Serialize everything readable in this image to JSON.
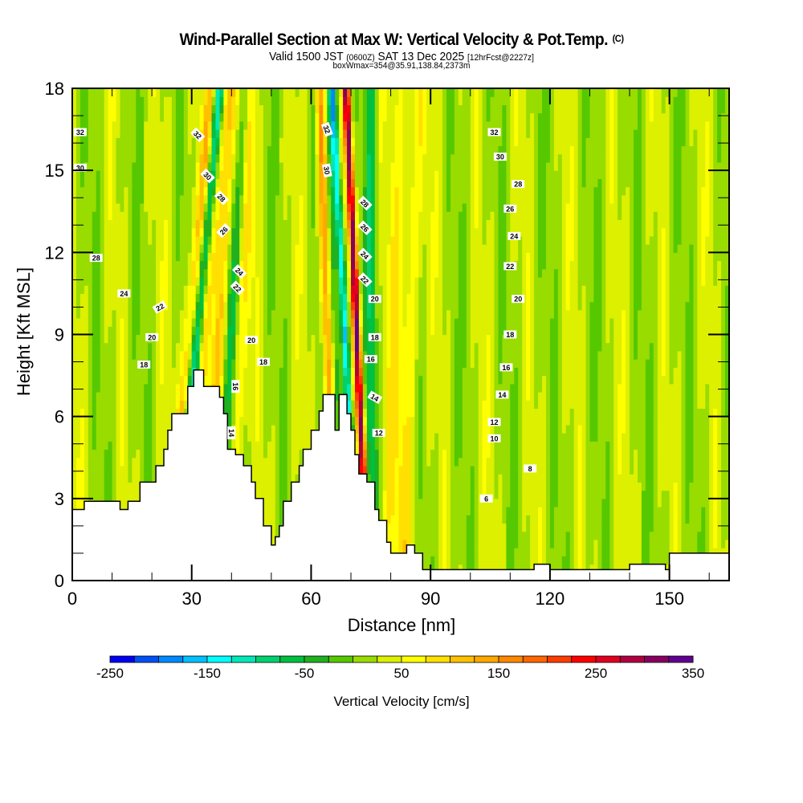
{
  "header": {
    "title": "Wind-Parallel Section at Max W: Vertical Velocity & Pot.Temp.",
    "copyright": "(C)",
    "valid_prefix": "Valid 1500 JST",
    "valid_utc": "(0600Z)",
    "valid_date": "SAT 13 Dec 2025",
    "forecast": "[12hrFcst@2227z]",
    "boxwmax": "boxWmax=354@35.91,138.84,2373m"
  },
  "chart_data": {
    "type": "heatmap",
    "title": "Wind-Parallel Section at Max W: Vertical Velocity & Pot.Temp.",
    "xlabel": "Distance [nm]",
    "ylabel": "Height [Kft MSL]",
    "xlim": [
      0,
      165
    ],
    "ylim": [
      0,
      18
    ],
    "xticks": [
      "0",
      "30",
      "60",
      "90",
      "120",
      "150"
    ],
    "xtick_values": [
      0,
      30,
      60,
      90,
      120,
      150
    ],
    "yticks": [
      "0",
      "3",
      "6",
      "9",
      "12",
      "15",
      "18"
    ],
    "ytick_values": [
      0,
      3,
      6,
      9,
      12,
      15,
      18
    ],
    "colorbar": {
      "label": "Vertical Velocity [cm/s]",
      "min": -250,
      "max": 350,
      "step": 25,
      "tick_labels": [
        "-250",
        "-150",
        "-50",
        "50",
        "150",
        "250",
        "350"
      ],
      "tick_values": [
        -250,
        -150,
        -50,
        50,
        150,
        250,
        350
      ],
      "colors": [
        "#0000f0",
        "#0050f5",
        "#0088ff",
        "#00c0ff",
        "#00ffff",
        "#00e8b8",
        "#00d070",
        "#00c040",
        "#20b020",
        "#55c800",
        "#98dc00",
        "#dcf000",
        "#ffff00",
        "#ffe000",
        "#ffc000",
        "#ffa800",
        "#ff8800",
        "#ff6600",
        "#ff3c00",
        "#ff0000",
        "#e00020",
        "#b00040",
        "#880060",
        "#600090"
      ]
    },
    "terrain_kft": [
      [
        0,
        2.6
      ],
      [
        3,
        2.6
      ],
      [
        3,
        2.9
      ],
      [
        12,
        2.9
      ],
      [
        12,
        2.6
      ],
      [
        14,
        2.6
      ],
      [
        14,
        2.9
      ],
      [
        17,
        2.9
      ],
      [
        17,
        3.6
      ],
      [
        21,
        3.6
      ],
      [
        21,
        4.2
      ],
      [
        23,
        4.2
      ],
      [
        23,
        4.8
      ],
      [
        24,
        4.8
      ],
      [
        24,
        5.5
      ],
      [
        25,
        5.5
      ],
      [
        25,
        6.1
      ],
      [
        29,
        6.1
      ],
      [
        29,
        7.1
      ],
      [
        30.5,
        7.1
      ],
      [
        30.5,
        7.7
      ],
      [
        33,
        7.7
      ],
      [
        33,
        7.1
      ],
      [
        37,
        7.1
      ],
      [
        37,
        6.7
      ],
      [
        38,
        6.7
      ],
      [
        38,
        6.1
      ],
      [
        39,
        6.1
      ],
      [
        39,
        4.8
      ],
      [
        41,
        4.8
      ],
      [
        41,
        4.6
      ],
      [
        43,
        4.6
      ],
      [
        43,
        4.2
      ],
      [
        45,
        4.2
      ],
      [
        45,
        3.6
      ],
      [
        46,
        3.6
      ],
      [
        46,
        3.0
      ],
      [
        48,
        3.0
      ],
      [
        48,
        2.0
      ],
      [
        50,
        2.0
      ],
      [
        50,
        1.3
      ],
      [
        51,
        1.3
      ],
      [
        51,
        1.6
      ],
      [
        52,
        1.6
      ],
      [
        52,
        2.0
      ],
      [
        53,
        2.0
      ],
      [
        53,
        2.9
      ],
      [
        55,
        2.9
      ],
      [
        55,
        3.6
      ],
      [
        57,
        3.6
      ],
      [
        57,
        4.2
      ],
      [
        58,
        4.2
      ],
      [
        58,
        4.8
      ],
      [
        60,
        4.8
      ],
      [
        60,
        5.5
      ],
      [
        62,
        5.5
      ],
      [
        62,
        6.2
      ],
      [
        63,
        6.2
      ],
      [
        63,
        6.8
      ],
      [
        66,
        6.8
      ],
      [
        66,
        5.5
      ],
      [
        67,
        5.5
      ],
      [
        67,
        6.8
      ],
      [
        69,
        6.8
      ],
      [
        69,
        6.1
      ],
      [
        70,
        6.1
      ],
      [
        70,
        5.5
      ],
      [
        71,
        5.5
      ],
      [
        71,
        4.6
      ],
      [
        72,
        4.6
      ],
      [
        72,
        3.9
      ],
      [
        74,
        3.9
      ],
      [
        74,
        3.6
      ],
      [
        76,
        3.6
      ],
      [
        76,
        2.6
      ],
      [
        77,
        2.6
      ],
      [
        77,
        2.2
      ],
      [
        79,
        2.2
      ],
      [
        79,
        1.4
      ],
      [
        80,
        1.4
      ],
      [
        80,
        1.0
      ],
      [
        84,
        1.0
      ],
      [
        84,
        1.3
      ],
      [
        86,
        1.3
      ],
      [
        86,
        1.0
      ],
      [
        88,
        1.0
      ],
      [
        88,
        0.4
      ],
      [
        116,
        0.4
      ],
      [
        116,
        0.6
      ],
      [
        120,
        0.6
      ],
      [
        120,
        0.4
      ],
      [
        140,
        0.4
      ],
      [
        140,
        0.6
      ],
      [
        149,
        0.6
      ],
      [
        149,
        0.4
      ],
      [
        150,
        0.4
      ],
      [
        150,
        1.0
      ],
      [
        165,
        1.0
      ]
    ],
    "theta_contour_labels": [
      "32",
      "30",
      "28",
      "26",
      "24",
      "22",
      "20",
      "18",
      "16",
      "14",
      "12",
      "10",
      "8",
      "6"
    ],
    "updraft_max_cm_s": 354
  }
}
